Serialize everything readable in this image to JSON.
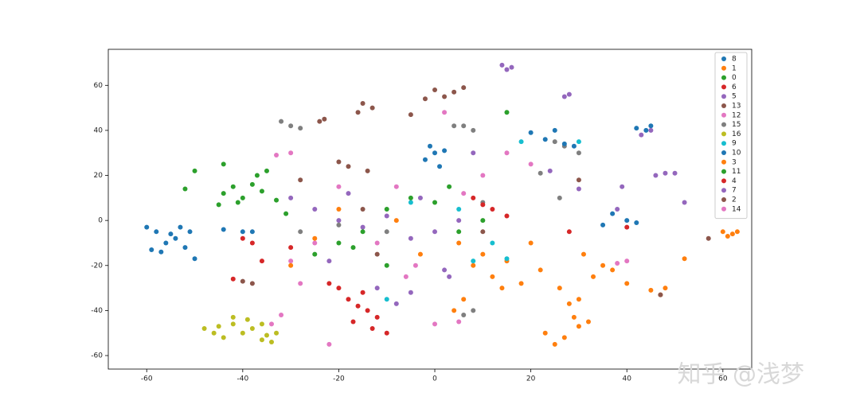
{
  "chart_data": {
    "type": "scatter",
    "legend": "upper right",
    "watermark": "知乎 @浅梦",
    "xlim": [
      -68,
      66
    ],
    "ylim": [
      -66,
      76
    ],
    "xticks": [
      -60,
      -40,
      -20,
      0,
      20,
      40,
      60
    ],
    "yticks": [
      -60,
      -40,
      -20,
      0,
      20,
      40,
      60
    ],
    "series": [
      {
        "name": "8",
        "color": "#1f77b4",
        "x": [
          -60,
          -58,
          -56,
          -54,
          -57,
          -52,
          -50,
          -55,
          -53,
          -59,
          -51,
          -44,
          -40,
          -38
        ],
        "values": [
          -3,
          -5,
          -10,
          -8,
          -14,
          -12,
          -17,
          -6,
          -3,
          -13,
          -5,
          -4,
          -5,
          -5
        ]
      },
      {
        "name": "1",
        "color": "#ff7f0e",
        "x": [
          25,
          27,
          23,
          30,
          29,
          32,
          28,
          30,
          26,
          33,
          35,
          31,
          22,
          15,
          12,
          10,
          8,
          14,
          6,
          4
        ],
        "values": [
          -55,
          -52,
          -50,
          -47,
          -43,
          -45,
          -37,
          -35,
          -30,
          -25,
          -20,
          -15,
          -22,
          -18,
          -25,
          -15,
          -20,
          -30,
          -35,
          -40
        ]
      },
      {
        "name": "0",
        "color": "#2ca02c",
        "x": [
          -44,
          -42,
          -40,
          -38,
          -36,
          -41,
          -45,
          -37,
          -35,
          -50,
          -52,
          -44,
          -33,
          -31
        ],
        "values": [
          12,
          15,
          10,
          16,
          13,
          8,
          7,
          20,
          22,
          22,
          14,
          25,
          9,
          3
        ]
      },
      {
        "name": "6",
        "color": "#d62728",
        "x": [
          -20,
          -18,
          -16,
          -14,
          -12,
          -17,
          -13,
          -10,
          -22,
          -15
        ],
        "values": [
          -30,
          -35,
          -38,
          -40,
          -43,
          -45,
          -48,
          -50,
          -28,
          -32
        ]
      },
      {
        "name": "5",
        "color": "#9467bd",
        "x": [
          -30,
          -25,
          -20,
          -15,
          -10,
          -5,
          0,
          5,
          3,
          -5,
          -12,
          -8,
          -3,
          8,
          2,
          -18,
          -22
        ],
        "values": [
          10,
          5,
          0,
          -3,
          2,
          -8,
          -5,
          0,
          -25,
          -32,
          -30,
          -37,
          10,
          30,
          -22,
          12,
          -18
        ]
      },
      {
        "name": "13",
        "color": "#8c564b",
        "x": [
          -15,
          -13,
          -16,
          0,
          2,
          4,
          -2,
          6,
          -20,
          -18,
          -14,
          -23,
          -24
        ],
        "values": [
          52,
          50,
          48,
          58,
          55,
          57,
          54,
          59,
          26,
          24,
          22,
          45,
          44
        ]
      },
      {
        "name": "12",
        "color": "#e377c2",
        "x": [
          -33,
          -30,
          -28,
          -30,
          -25,
          0,
          5,
          40,
          38,
          -20,
          10,
          -6
        ],
        "values": [
          29,
          30,
          -28,
          -18,
          -10,
          -46,
          -45,
          -18,
          -19,
          15,
          20,
          -25
        ]
      },
      {
        "name": "15",
        "color": "#7f7f7f",
        "x": [
          -32,
          -30,
          -28,
          4,
          6,
          8,
          25,
          27,
          30,
          22,
          -20,
          -10,
          -28,
          8,
          6,
          10,
          26
        ],
        "values": [
          44,
          42,
          41,
          42,
          42,
          40,
          35,
          33,
          30,
          21,
          -2,
          -5,
          -5,
          -40,
          -42,
          8,
          10
        ]
      },
      {
        "name": "16",
        "color": "#bcbd22",
        "x": [
          -48,
          -46,
          -44,
          -42,
          -40,
          -38,
          -36,
          -34,
          -33,
          -42,
          -39,
          -36,
          -35,
          -45
        ],
        "values": [
          -48,
          -50,
          -52,
          -46,
          -50,
          -48,
          -53,
          -54,
          -50,
          -43,
          -44,
          -46,
          -51,
          -47
        ]
      },
      {
        "name": "9",
        "color": "#17becf",
        "x": [
          -10,
          15,
          8,
          -5,
          18,
          5,
          12,
          30
        ],
        "values": [
          -35,
          -17,
          -18,
          8,
          35,
          5,
          -10,
          35
        ]
      },
      {
        "name": "10",
        "color": "#1f77b4",
        "x": [
          0,
          -2,
          1,
          -1,
          2,
          20,
          23,
          25,
          27,
          29,
          42,
          45,
          44,
          35,
          40,
          42,
          37
        ],
        "values": [
          30,
          27,
          24,
          33,
          31,
          39,
          36,
          40,
          34,
          33,
          41,
          42,
          40,
          -2,
          0,
          -1,
          3
        ]
      },
      {
        "name": "3",
        "color": "#ff7f0e",
        "x": [
          62,
          63,
          61,
          60,
          52,
          47,
          48,
          45,
          40,
          37,
          18,
          20,
          5,
          -3,
          -8,
          -20,
          -25,
          -30
        ],
        "values": [
          -6,
          -5,
          -7,
          -5,
          -17,
          -33,
          -30,
          -31,
          -28,
          -22,
          -28,
          -10,
          -10,
          -15,
          0,
          5,
          -8,
          -20
        ]
      },
      {
        "name": "11",
        "color": "#2ca02c",
        "x": [
          -20,
          -17,
          -15,
          -10,
          -5,
          0,
          5,
          10,
          15,
          -10,
          -25,
          3
        ],
        "values": [
          -10,
          -12,
          -5,
          5,
          10,
          8,
          -5,
          0,
          48,
          -20,
          -15,
          15
        ]
      },
      {
        "name": "4",
        "color": "#d62728",
        "x": [
          -40,
          -38,
          -42,
          -36,
          -30,
          12,
          8,
          10,
          15,
          28,
          40
        ],
        "values": [
          -8,
          -10,
          -26,
          -18,
          -12,
          5,
          10,
          7,
          2,
          -5,
          -3
        ]
      },
      {
        "name": "7",
        "color": "#9467bd",
        "x": [
          16,
          14,
          15,
          43,
          45,
          48,
          46,
          50,
          39,
          30,
          24,
          38,
          52,
          28,
          27
        ],
        "values": [
          68,
          69,
          67,
          38,
          40,
          21,
          20,
          21,
          15,
          14,
          22,
          5,
          8,
          56,
          55
        ]
      },
      {
        "name": "2",
        "color": "#8c564b",
        "x": [
          -5,
          -40,
          -38,
          47,
          57,
          -15,
          10,
          -28,
          30,
          -12
        ],
        "values": [
          47,
          -27,
          -28,
          -33,
          -8,
          5,
          -5,
          18,
          18,
          -15
        ]
      },
      {
        "name": "14",
        "color": "#e377c2",
        "x": [
          -32,
          -34,
          -12,
          -8,
          2,
          15,
          20,
          -22,
          -4,
          6
        ],
        "values": [
          -42,
          -46,
          -10,
          15,
          48,
          30,
          25,
          -55,
          -20,
          12
        ]
      }
    ]
  }
}
